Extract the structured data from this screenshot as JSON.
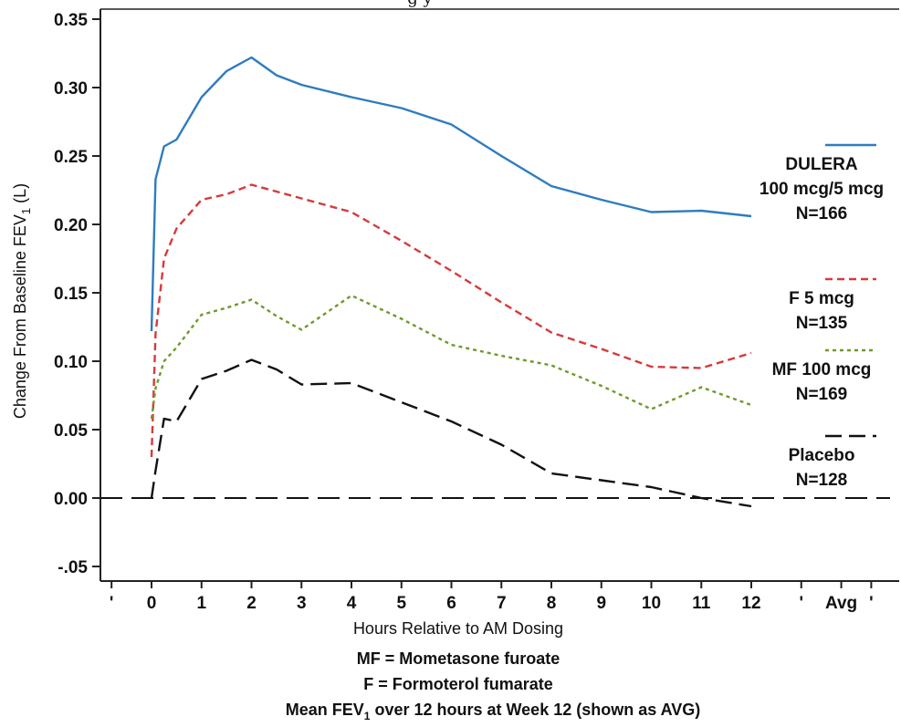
{
  "chart_data": {
    "type": "line",
    "title_fragment": "g        y",
    "ylabel_main": "Change From Baseline FEV",
    "ylabel_sub": "1",
    "ylabel_unit": " (L)",
    "xlabel": "Hours Relative to AM Dosing",
    "ylim": [
      -0.07,
      0.355
    ],
    "xlim": [
      -1.0,
      14.5
    ],
    "y_ticks": [
      {
        "value": 0.35,
        "label": "0.35"
      },
      {
        "value": 0.3,
        "label": "0.30"
      },
      {
        "value": 0.25,
        "label": "0.25"
      },
      {
        "value": 0.2,
        "label": "0.20"
      },
      {
        "value": 0.15,
        "label": "0.15"
      },
      {
        "value": 0.1,
        "label": "0.10"
      },
      {
        "value": 0.05,
        "label": "0.05"
      },
      {
        "value": 0.0,
        "label": "0.00"
      },
      {
        "value": -0.05,
        "label": "-.05"
      }
    ],
    "x_ticks": [
      {
        "value": -0.8,
        "label": "'"
      },
      {
        "value": 0,
        "label": "0"
      },
      {
        "value": 1,
        "label": "1"
      },
      {
        "value": 2,
        "label": "2"
      },
      {
        "value": 3,
        "label": "3"
      },
      {
        "value": 4,
        "label": "4"
      },
      {
        "value": 5,
        "label": "5"
      },
      {
        "value": 6,
        "label": "6"
      },
      {
        "value": 7,
        "label": "7"
      },
      {
        "value": 8,
        "label": "8"
      },
      {
        "value": 9,
        "label": "9"
      },
      {
        "value": 10,
        "label": "10"
      },
      {
        "value": 11,
        "label": "11"
      },
      {
        "value": 12,
        "label": "12"
      },
      {
        "value": 13.0,
        "label": "'"
      },
      {
        "value": 13.8,
        "label": "Avg"
      },
      {
        "value": 14.4,
        "label": "'"
      }
    ],
    "reference_line": {
      "y": 0.0,
      "color": "#111111",
      "dash": "24,10"
    },
    "series": [
      {
        "name": "DULERA 100 mcg/5 mcg N=166",
        "legend_lines": [
          "DULERA",
          "100 mcg/5 mcg",
          "N=166"
        ],
        "color": "#2e7cc0",
        "dash": "",
        "x": [
          0,
          0.08,
          0.25,
          0.5,
          1,
          1.5,
          2,
          2.5,
          3,
          4,
          5,
          6,
          7,
          8,
          9,
          10,
          11,
          12
        ],
        "y": [
          0.122,
          0.233,
          0.257,
          0.262,
          0.293,
          0.312,
          0.322,
          0.309,
          0.302,
          0.293,
          0.285,
          0.273,
          0.25,
          0.228,
          0.218,
          0.209,
          0.21,
          0.206
        ]
      },
      {
        "name": "F 5 mcg N=135",
        "legend_lines": [
          "F 5 mcg",
          "N=135"
        ],
        "color": "#d63a3c",
        "dash": "8,5",
        "x": [
          0,
          0.08,
          0.25,
          0.5,
          1,
          1.5,
          2,
          2.5,
          3,
          4,
          5,
          6,
          7,
          8,
          9,
          10,
          11,
          12
        ],
        "y": [
          0.03,
          0.12,
          0.175,
          0.197,
          0.218,
          0.222,
          0.229,
          0.224,
          0.219,
          0.209,
          0.188,
          0.166,
          0.143,
          0.121,
          0.109,
          0.096,
          0.095,
          0.106
        ]
      },
      {
        "name": "MF 100 mcg N=169",
        "legend_lines": [
          "MF 100 mcg",
          "N=169"
        ],
        "color": "#6e9a2c",
        "dash": "4,4",
        "x": [
          0,
          0.08,
          0.25,
          0.5,
          1,
          1.5,
          2,
          2.5,
          3,
          4,
          5,
          6,
          7,
          8,
          9,
          10,
          11,
          12
        ],
        "y": [
          0.058,
          0.08,
          0.1,
          0.11,
          0.134,
          0.139,
          0.145,
          0.133,
          0.123,
          0.148,
          0.131,
          0.112,
          0.104,
          0.097,
          0.082,
          0.065,
          0.081,
          0.068
        ]
      },
      {
        "name": "Placebo N=128",
        "legend_lines": [
          "Placebo",
          "N=128"
        ],
        "color": "#111111",
        "dash": "18,8",
        "x": [
          0,
          0.08,
          0.25,
          0.5,
          1,
          1.5,
          2,
          2.5,
          3,
          4,
          5,
          6,
          7,
          8,
          9,
          10,
          11,
          12
        ],
        "y": [
          0.0,
          0.02,
          0.058,
          0.056,
          0.087,
          0.093,
          0.101,
          0.094,
          0.083,
          0.084,
          0.07,
          0.056,
          0.039,
          0.018,
          0.013,
          0.008,
          0.0,
          -0.006
        ]
      }
    ],
    "footnotes": {
      "line1": "MF = Mometasone furoate",
      "line2": "F = Formoterol fumarate",
      "line3_pre": "Mean FEV",
      "line3_sub": "1",
      "line3_post": "  over 12 hours at Week 12 (shown as AVG)"
    }
  }
}
